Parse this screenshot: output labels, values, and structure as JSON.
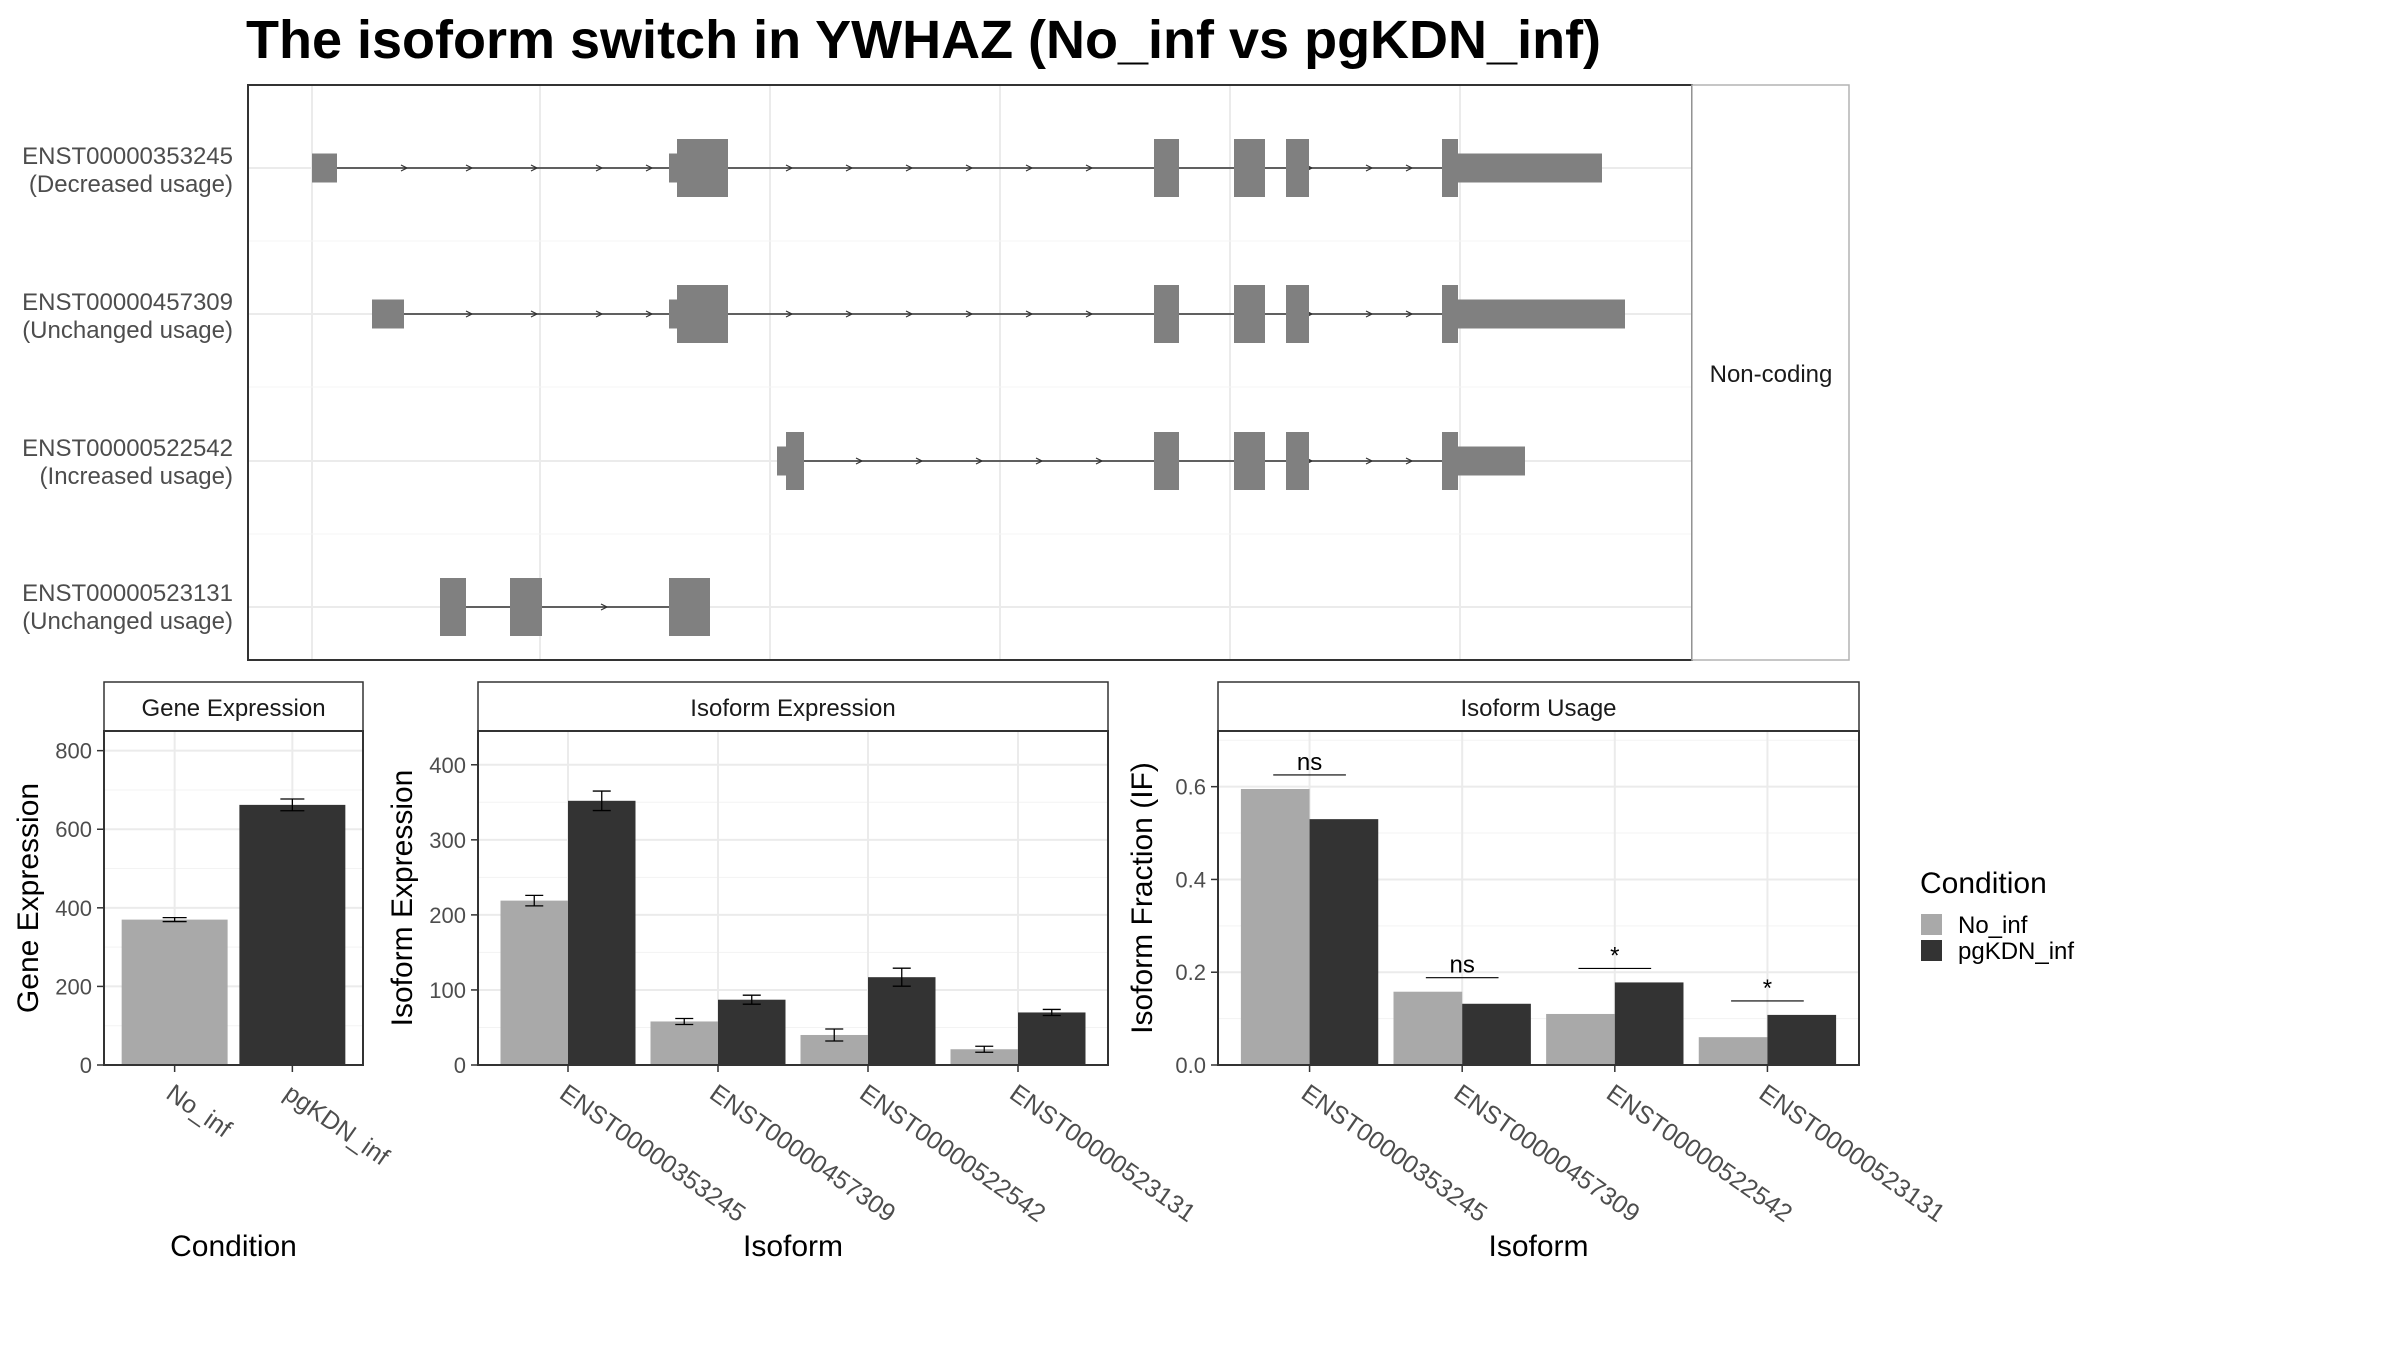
{
  "title": "The isoform switch in YWHAZ (No_inf vs pgKDN_inf)",
  "colors": {
    "no_inf": "#a9a9a9",
    "pgkdn_inf": "#333333",
    "exon": "#808080",
    "grid": "#ebebeb",
    "panel_border": "#333333",
    "strip_border": "#b3b3b3"
  },
  "legend": {
    "title": "Condition",
    "items": [
      "No_inf",
      "pgKDN_inf"
    ]
  },
  "structure_panel": {
    "strip_label": "Non-coding",
    "transcripts": [
      {
        "id": "ENST00000353245",
        "usage": "(Decreased usage)"
      },
      {
        "id": "ENST00000457309",
        "usage": "(Unchanged usage)"
      },
      {
        "id": "ENST00000522542",
        "usage": "(Increased usage)"
      },
      {
        "id": "ENST00000523131",
        "usage": "(Unchanged usage)"
      }
    ]
  },
  "chart_data": [
    {
      "type": "bar",
      "title": "Gene Expression",
      "xlabel": "Condition",
      "ylabel": "Gene Expression",
      "categories": [
        "No_inf",
        "pgKDN_inf"
      ],
      "values": [
        370,
        662
      ],
      "errors": [
        5,
        15
      ],
      "ylim": [
        0,
        850
      ],
      "yticks": [
        0,
        200,
        400,
        600,
        800
      ],
      "yticklabels": [
        "0",
        "200",
        "400",
        "600",
        "800"
      ]
    },
    {
      "type": "bar",
      "title": "Isoform Expression",
      "xlabel": "Isoform",
      "ylabel": "Isoform Expression",
      "categories": [
        "ENST00000353245",
        "ENST00000457309",
        "ENST00000522542",
        "ENST00000523131"
      ],
      "series": [
        {
          "name": "No_inf",
          "values": [
            219,
            58,
            40,
            21
          ],
          "errors": [
            7,
            4,
            8,
            4
          ]
        },
        {
          "name": "pgKDN_inf",
          "values": [
            352,
            87,
            117,
            70
          ],
          "errors": [
            13,
            6,
            12,
            4
          ]
        }
      ],
      "ylim": [
        0,
        445
      ],
      "yticks": [
        0,
        100,
        200,
        300,
        400
      ],
      "yticklabels": [
        "0",
        "100",
        "200",
        "300",
        "400"
      ]
    },
    {
      "type": "bar",
      "title": "Isoform Usage",
      "xlabel": "Isoform",
      "ylabel": "Isoform Fraction (IF)",
      "categories": [
        "ENST00000353245",
        "ENST00000457309",
        "ENST00000522542",
        "ENST00000523131"
      ],
      "series": [
        {
          "name": "No_inf",
          "values": [
            0.595,
            0.158,
            0.11,
            0.06
          ]
        },
        {
          "name": "pgKDN_inf",
          "values": [
            0.53,
            0.132,
            0.178,
            0.108
          ]
        }
      ],
      "significance": [
        "ns",
        "ns",
        "*",
        "*"
      ],
      "ylim": [
        0,
        0.72
      ],
      "yticks": [
        0,
        0.2,
        0.4,
        0.6
      ],
      "yticklabels": [
        "0.0",
        "0.2",
        "0.4",
        "0.6"
      ]
    }
  ]
}
